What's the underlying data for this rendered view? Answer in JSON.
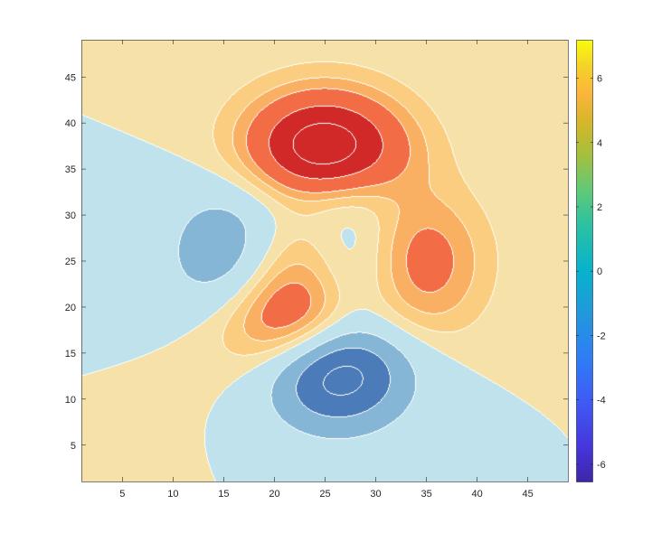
{
  "chart_data": {
    "type": "contourf",
    "function": "peaks",
    "grid_size": 49,
    "xlim": [
      1,
      49
    ],
    "ylim": [
      1,
      49
    ],
    "x_ticks": [
      5,
      10,
      15,
      20,
      25,
      30,
      35,
      40,
      45
    ],
    "y_ticks": [
      5,
      10,
      15,
      20,
      25,
      30,
      35,
      40,
      45
    ],
    "z_min": -6.55,
    "z_max": 8.1,
    "contour_levels": [
      -6,
      -4,
      -2,
      0,
      1,
      2,
      3,
      5,
      7
    ],
    "contour_line_color": "#ffffff",
    "band_colors": [
      "#4b7bb8",
      "#4b7bb8",
      "#86b6d5",
      "#bfe2ec",
      "#f6e2a8",
      "#fbcd80",
      "#f9b062",
      "#f26c45",
      "#d02927",
      "#d02927"
    ],
    "grid": false,
    "box": true,
    "colorbar": {
      "colormap": "parula",
      "clim": [
        -6.55,
        7.18
      ],
      "ticks": [
        -6,
        -4,
        -2,
        0,
        2,
        4,
        6
      ],
      "location": "right"
    },
    "title": "",
    "xlabel": "",
    "ylabel": ""
  }
}
